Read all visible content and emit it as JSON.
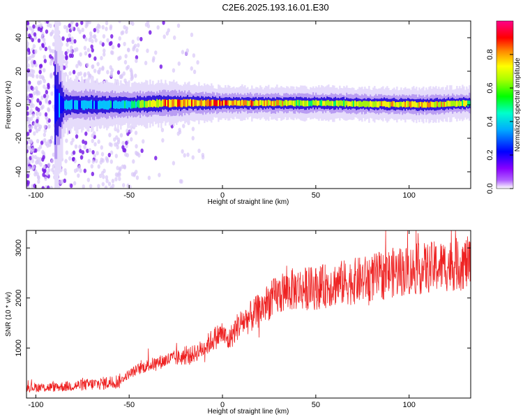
{
  "figure_title": "C2E6.2025.193.16.01.E30",
  "colors": {
    "snr_line": "#ee2222",
    "spectrum_outer": "#d2bdf5",
    "spectrum_core": "#2a10d8",
    "frame": "#000000"
  },
  "chart_data": [
    {
      "type": "heatmap",
      "title": "",
      "xlabel": "Height of straight line (km)",
      "ylabel": "Frequency (Hz)",
      "xlim": [
        -105,
        133
      ],
      "ylim": [
        -50,
        50
      ],
      "x_ticks": [
        -100,
        -50,
        0,
        50,
        100
      ],
      "y_ticks": [
        -40,
        -20,
        0,
        20,
        40
      ],
      "colorbar": {
        "label": "Normalized spectral amplitude",
        "range": [
          0,
          1
        ],
        "ticks": [
          "0.0",
          "0.2",
          "0.4",
          "0.6",
          "0.8"
        ],
        "tick_values": [
          0.0,
          0.2,
          0.4,
          0.6,
          0.8
        ],
        "colormap": [
          "#ffffff",
          "#8800ff",
          "#0000ff",
          "#00ccff",
          "#00ff66",
          "#aaff00",
          "#ffff00",
          "#ff8800",
          "#ff0000",
          "#ff00aa"
        ]
      },
      "description_points": [
        {
          "x": -100,
          "center_hz": 0,
          "spread_hz": 50,
          "intensity": 0.1
        },
        {
          "x": -85,
          "center_hz": 0,
          "spread_hz": 5,
          "intensity": 0.3
        },
        {
          "x": -50,
          "center_hz": 0,
          "spread_hz": 4,
          "intensity": 0.35
        },
        {
          "x": -30,
          "center_hz": 1,
          "spread_hz": 4,
          "intensity": 0.75
        },
        {
          "x": 0,
          "center_hz": 1,
          "spread_hz": 3,
          "intensity": 0.8
        },
        {
          "x": 50,
          "center_hz": 1,
          "spread_hz": 3,
          "intensity": 0.55
        },
        {
          "x": 110,
          "center_hz": 0,
          "spread_hz": 3,
          "intensity": 0.7
        },
        {
          "x": 133,
          "center_hz": 1,
          "spread_hz": 3,
          "intensity": 0.5
        }
      ]
    },
    {
      "type": "line",
      "title": "",
      "xlabel": "Height of straight line (km)",
      "ylabel": "SNR (10 * v/v)",
      "xlim": [
        -105,
        133
      ],
      "ylim": [
        0,
        3350
      ],
      "x_ticks": [
        -100,
        -50,
        0,
        50,
        100
      ],
      "y_ticks": [
        1000,
        2000,
        3000
      ],
      "series": [
        {
          "x": [
            -105,
            -95,
            -85,
            -75,
            -65,
            -55,
            -50,
            -45,
            -40,
            -35,
            -30,
            -25,
            -20,
            -15,
            -10,
            -5,
            0,
            3,
            5,
            8,
            10,
            15,
            20,
            25,
            30,
            35,
            40,
            50,
            60,
            70,
            80,
            90,
            100,
            110,
            120,
            133
          ],
          "y": [
            220,
            210,
            230,
            260,
            290,
            340,
            480,
            580,
            650,
            700,
            760,
            800,
            820,
            890,
            1000,
            1180,
            1300,
            1130,
            1250,
            1430,
            1500,
            1620,
            1760,
            1940,
            2060,
            2150,
            2180,
            2200,
            2280,
            2330,
            2400,
            2500,
            2550,
            2600,
            2650,
            2700
          ]
        }
      ]
    }
  ]
}
